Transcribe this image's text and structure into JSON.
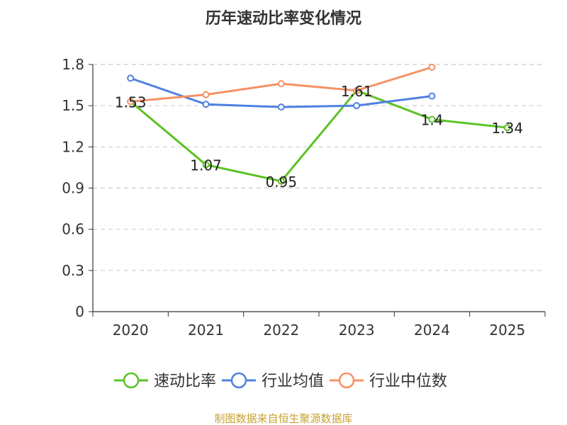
{
  "chart_data": {
    "type": "line",
    "title": "历年速动比率变化情况",
    "categories": [
      "2020",
      "2021",
      "2022",
      "2023",
      "2024",
      "2025"
    ],
    "ylim": [
      0,
      1.8
    ],
    "yticks": [
      0,
      0.3,
      0.6,
      0.9,
      1.2,
      1.5,
      1.8
    ],
    "ytick_labels": [
      "0",
      "0.3",
      "0.6",
      "0.9",
      "1.2",
      "1.5",
      "1.8"
    ],
    "grid": true,
    "legend_position": "bottom-center",
    "series": [
      {
        "name": "速动比率",
        "color": "#5bc225",
        "values": [
          1.53,
          1.07,
          0.95,
          1.61,
          1.4,
          1.34
        ],
        "labels": [
          "1.53",
          "1.07",
          "0.95",
          "1.61",
          "1.4",
          "1.34"
        ],
        "show_labels": true
      },
      {
        "name": "行业均值",
        "color": "#4f81e0",
        "values": [
          1.7,
          1.51,
          1.49,
          1.5,
          1.57,
          null
        ],
        "show_labels": false
      },
      {
        "name": "行业中位数",
        "color": "#f59165",
        "values": [
          1.53,
          1.58,
          1.66,
          1.61,
          1.78,
          null
        ],
        "show_labels": false
      }
    ],
    "source": "制图数据来自恒生聚源数据库",
    "source_color": "#c8a030"
  }
}
